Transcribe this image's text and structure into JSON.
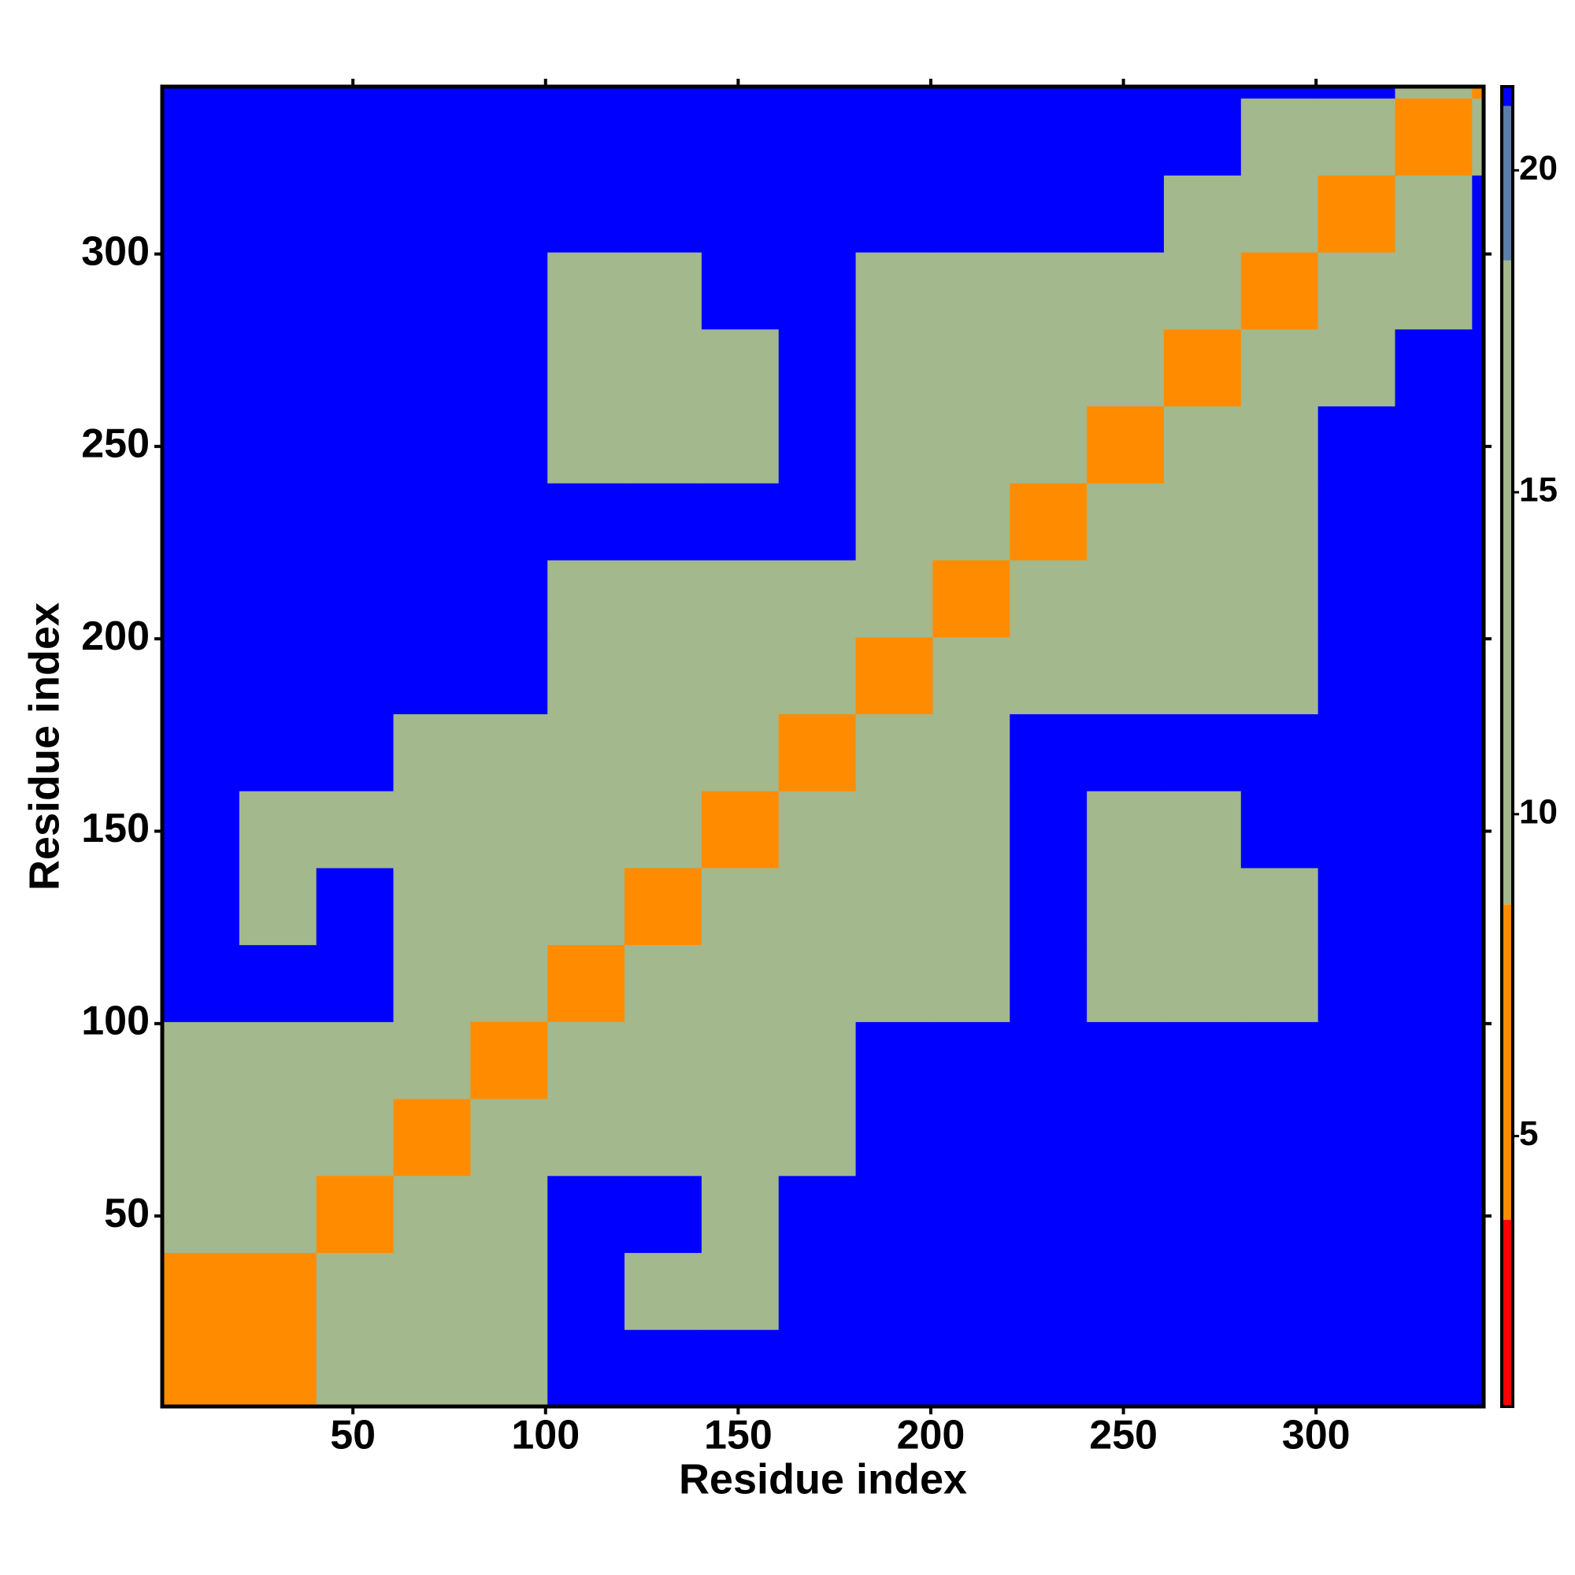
{
  "chart_data": {
    "type": "heatmap",
    "xlabel": "Residue index",
    "ylabel": "Residue index",
    "x_bins": [
      0.5,
      20.5,
      40.5,
      60.5,
      80.5,
      100.5,
      120.5,
      140.5,
      160.5,
      180.5,
      200.5,
      220.5,
      240.5,
      260.5,
      280.5,
      300.5,
      320.5,
      340.5,
      343.5
    ],
    "y_bins": [
      0.5,
      20.5,
      40.5,
      60.5,
      80.5,
      100.5,
      120.5,
      140.5,
      160.5,
      180.5,
      200.5,
      220.5,
      240.5,
      260.5,
      280.5,
      300.5,
      320.5,
      340.5,
      343.5
    ],
    "z": [
      [
        5,
        8,
        11,
        12,
        12,
        21,
        21,
        21,
        21,
        21,
        21,
        21,
        21,
        21,
        21,
        21,
        21,
        21
      ],
      [
        8,
        5,
        9,
        12,
        13,
        21,
        15,
        14,
        21,
        21,
        21,
        21,
        21,
        21,
        21,
        21,
        21,
        21
      ],
      [
        11,
        9,
        5,
        10,
        13,
        21,
        21,
        15,
        21,
        21,
        21,
        21,
        21,
        21,
        21,
        21,
        21,
        21
      ],
      [
        12,
        12,
        10,
        5,
        9,
        13,
        12,
        12,
        13,
        21,
        21,
        21,
        21,
        21,
        21,
        21,
        21,
        21
      ],
      [
        12,
        13,
        13,
        9,
        5,
        10,
        14,
        13,
        13,
        21,
        21,
        21,
        21,
        21,
        21,
        21,
        21,
        21
      ],
      [
        21,
        21,
        21,
        13,
        10,
        5,
        10,
        11,
        14,
        13,
        12,
        21,
        14,
        13,
        14,
        21,
        21,
        21
      ],
      [
        21,
        15,
        21,
        12,
        14,
        10,
        5,
        10,
        11,
        12,
        12,
        21,
        15,
        14,
        16,
        21,
        21,
        21
      ],
      [
        21,
        14,
        15,
        12,
        13,
        11,
        10,
        5,
        10,
        12,
        12,
        21,
        15,
        14,
        21,
        21,
        21,
        21
      ],
      [
        21,
        21,
        21,
        13,
        13,
        14,
        11,
        10,
        5,
        10,
        12,
        21,
        21,
        21,
        21,
        21,
        21,
        21
      ],
      [
        21,
        21,
        21,
        21,
        21,
        13,
        12,
        12,
        10,
        5,
        10,
        12,
        13,
        13,
        14,
        21,
        21,
        21
      ],
      [
        21,
        21,
        21,
        21,
        21,
        12,
        12,
        12,
        12,
        10,
        5,
        10,
        14,
        14,
        15,
        21,
        21,
        21
      ],
      [
        21,
        21,
        21,
        21,
        21,
        21,
        21,
        21,
        21,
        12,
        10,
        5,
        10,
        12,
        14,
        21,
        21,
        21
      ],
      [
        21,
        21,
        21,
        21,
        21,
        14,
        15,
        15,
        21,
        13,
        14,
        10,
        5,
        10,
        12,
        21,
        21,
        21
      ],
      [
        21,
        21,
        21,
        21,
        21,
        13,
        14,
        14,
        21,
        13,
        14,
        12,
        10,
        5,
        10,
        13,
        21,
        21
      ],
      [
        21,
        21,
        21,
        21,
        21,
        14,
        16,
        21,
        21,
        14,
        15,
        14,
        12,
        10,
        5,
        10,
        14,
        21
      ],
      [
        21,
        21,
        21,
        21,
        21,
        21,
        21,
        21,
        21,
        21,
        21,
        21,
        21,
        13,
        10,
        5,
        10,
        21
      ],
      [
        21,
        21,
        21,
        21,
        21,
        21,
        21,
        21,
        21,
        21,
        21,
        21,
        21,
        21,
        14,
        10,
        5,
        10
      ],
      [
        21,
        21,
        21,
        21,
        21,
        21,
        21,
        21,
        21,
        21,
        21,
        21,
        21,
        21,
        21,
        21,
        10,
        5
      ]
    ],
    "xlim": [
      0.5,
      343.5
    ],
    "ylim": [
      0.5,
      343.5
    ],
    "xticks": [
      50,
      100,
      150,
      200,
      250,
      300
    ],
    "yticks": [
      50,
      100,
      150,
      200,
      250,
      300
    ],
    "zlim": [
      0.8,
      21.3
    ],
    "zticks": [
      5,
      10,
      15,
      20
    ],
    "colorscale": [
      [
        0.8,
        "#ff0000"
      ],
      [
        3.7,
        "#ff8c00"
      ],
      [
        8.6,
        "#a3b88c"
      ],
      [
        18.6,
        "#5b7fa6"
      ],
      [
        21,
        "#0000ff"
      ]
    ]
  }
}
